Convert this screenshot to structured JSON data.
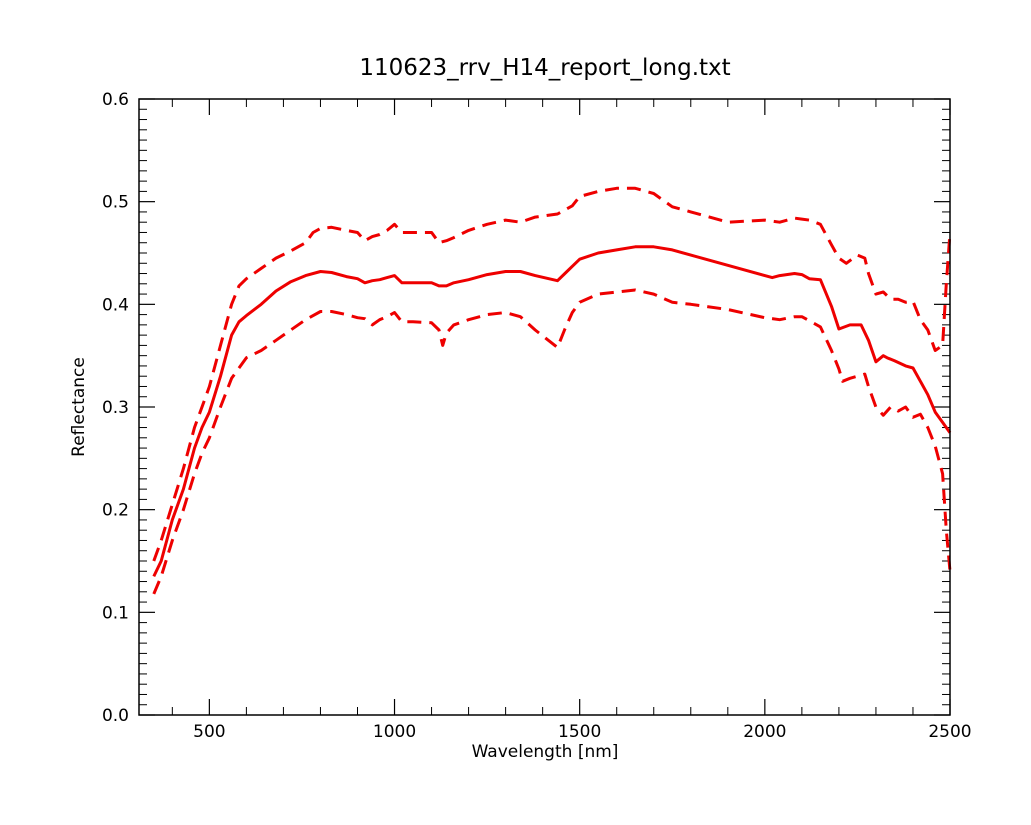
{
  "chart_data": {
    "type": "line",
    "title": "110623_rrv_H14_report_long.txt",
    "xlabel": "Wavelength [nm]",
    "ylabel": "Reflectance",
    "xlim": [
      310,
      2500
    ],
    "ylim": [
      0.0,
      0.6
    ],
    "x_ticks": [
      500,
      1000,
      1500,
      2000,
      2500
    ],
    "x_tick_labels": [
      "500",
      "1000",
      "1500",
      "2000",
      "2500"
    ],
    "y_ticks": [
      0.0,
      0.1,
      0.2,
      0.3,
      0.4,
      0.5,
      0.6
    ],
    "y_tick_labels": [
      "0.0",
      "0.1",
      "0.2",
      "0.3",
      "0.4",
      "0.5",
      "0.6"
    ],
    "grid": false,
    "legend": "none",
    "color": "#ee0000",
    "series": [
      {
        "style": "solid",
        "x": [
          350,
          370,
          400,
          430,
          460,
          480,
          500,
          530,
          560,
          580,
          600,
          640,
          680,
          720,
          760,
          800,
          830,
          870,
          900,
          920,
          940,
          960,
          980,
          1000,
          1020,
          1050,
          1100,
          1120,
          1140,
          1160,
          1200,
          1250,
          1300,
          1340,
          1380,
          1440,
          1460,
          1480,
          1500,
          1550,
          1600,
          1650,
          1700,
          1750,
          1800,
          1900,
          2000,
          2020,
          2040,
          2080,
          2100,
          2120,
          2150,
          2180,
          2200,
          2230,
          2260,
          2280,
          2300,
          2320,
          2330,
          2350,
          2380,
          2400,
          2420,
          2440,
          2460,
          2480,
          2500
        ],
        "y": [
          0.135,
          0.15,
          0.19,
          0.22,
          0.26,
          0.28,
          0.295,
          0.33,
          0.37,
          0.383,
          0.389,
          0.4,
          0.413,
          0.422,
          0.428,
          0.432,
          0.431,
          0.427,
          0.425,
          0.421,
          0.423,
          0.424,
          0.426,
          0.428,
          0.421,
          0.421,
          0.421,
          0.418,
          0.418,
          0.421,
          0.424,
          0.429,
          0.432,
          0.432,
          0.428,
          0.423,
          0.43,
          0.437,
          0.444,
          0.45,
          0.453,
          0.456,
          0.456,
          0.453,
          0.448,
          0.438,
          0.428,
          0.426,
          0.428,
          0.43,
          0.429,
          0.425,
          0.424,
          0.398,
          0.376,
          0.38,
          0.38,
          0.365,
          0.344,
          0.35,
          0.348,
          0.345,
          0.34,
          0.338,
          0.325,
          0.312,
          0.295,
          0.285,
          0.275
        ]
      },
      {
        "style": "dashed",
        "x": [
          350,
          370,
          400,
          430,
          460,
          480,
          500,
          530,
          560,
          580,
          600,
          640,
          680,
          720,
          760,
          780,
          800,
          830,
          870,
          900,
          920,
          940,
          960,
          980,
          1000,
          1020,
          1050,
          1100,
          1120,
          1140,
          1160,
          1200,
          1250,
          1300,
          1340,
          1380,
          1440,
          1460,
          1480,
          1500,
          1550,
          1600,
          1650,
          1700,
          1750,
          1800,
          1900,
          2000,
          2040,
          2080,
          2100,
          2120,
          2150,
          2180,
          2200,
          2220,
          2250,
          2270,
          2280,
          2300,
          2320,
          2340,
          2360,
          2380,
          2400,
          2420,
          2440,
          2460,
          2480,
          2490,
          2500
        ],
        "y": [
          0.15,
          0.17,
          0.205,
          0.24,
          0.28,
          0.3,
          0.32,
          0.36,
          0.4,
          0.418,
          0.425,
          0.435,
          0.445,
          0.452,
          0.46,
          0.47,
          0.474,
          0.475,
          0.472,
          0.47,
          0.462,
          0.466,
          0.468,
          0.472,
          0.478,
          0.47,
          0.47,
          0.47,
          0.46,
          0.462,
          0.465,
          0.472,
          0.478,
          0.482,
          0.48,
          0.485,
          0.488,
          0.492,
          0.496,
          0.505,
          0.51,
          0.513,
          0.513,
          0.508,
          0.495,
          0.49,
          0.48,
          0.482,
          0.48,
          0.484,
          0.483,
          0.482,
          0.478,
          0.458,
          0.445,
          0.44,
          0.448,
          0.445,
          0.43,
          0.41,
          0.412,
          0.405,
          0.405,
          0.402,
          0.403,
          0.385,
          0.375,
          0.355,
          0.36,
          0.42,
          0.47
        ]
      },
      {
        "style": "dashed",
        "x": [
          350,
          370,
          400,
          430,
          460,
          480,
          500,
          530,
          560,
          580,
          600,
          640,
          680,
          720,
          760,
          800,
          830,
          870,
          900,
          920,
          940,
          960,
          980,
          1000,
          1020,
          1050,
          1100,
          1120,
          1130,
          1140,
          1160,
          1200,
          1250,
          1300,
          1340,
          1380,
          1440,
          1460,
          1480,
          1500,
          1550,
          1600,
          1650,
          1700,
          1750,
          1800,
          1900,
          2000,
          2040,
          2080,
          2100,
          2120,
          2150,
          2180,
          2200,
          2210,
          2230,
          2250,
          2270,
          2280,
          2300,
          2320,
          2340,
          2360,
          2380,
          2400,
          2420,
          2440,
          2460,
          2480,
          2490,
          2500
        ],
        "y": [
          0.118,
          0.135,
          0.17,
          0.2,
          0.235,
          0.255,
          0.27,
          0.3,
          0.328,
          0.338,
          0.348,
          0.355,
          0.365,
          0.375,
          0.385,
          0.393,
          0.393,
          0.39,
          0.387,
          0.386,
          0.38,
          0.385,
          0.388,
          0.392,
          0.383,
          0.383,
          0.382,
          0.375,
          0.36,
          0.372,
          0.38,
          0.385,
          0.39,
          0.392,
          0.388,
          0.375,
          0.358,
          0.376,
          0.392,
          0.402,
          0.41,
          0.412,
          0.414,
          0.41,
          0.402,
          0.4,
          0.395,
          0.387,
          0.385,
          0.388,
          0.388,
          0.384,
          0.378,
          0.355,
          0.337,
          0.325,
          0.328,
          0.33,
          0.332,
          0.32,
          0.3,
          0.292,
          0.3,
          0.296,
          0.3,
          0.29,
          0.293,
          0.28,
          0.262,
          0.235,
          0.18,
          0.14
        ]
      }
    ]
  }
}
